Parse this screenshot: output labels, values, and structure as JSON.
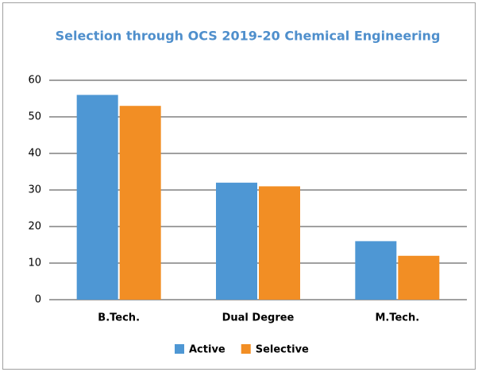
{
  "chart_data": {
    "type": "bar",
    "title": "Selection through OCS 2019-20 Chemical Engineering",
    "categories": [
      "B.Tech.",
      "Dual Degree",
      "M.Tech."
    ],
    "series": [
      {
        "name": "Active",
        "color": "#4e97d4",
        "values": [
          56,
          32,
          16
        ]
      },
      {
        "name": "Selective",
        "color": "#f28e24",
        "values": [
          53,
          31,
          12
        ]
      }
    ],
    "ylim": [
      0,
      60
    ],
    "yticks": [
      0,
      10,
      20,
      30,
      40,
      50,
      60
    ],
    "grid": true,
    "legend": "bottom"
  }
}
